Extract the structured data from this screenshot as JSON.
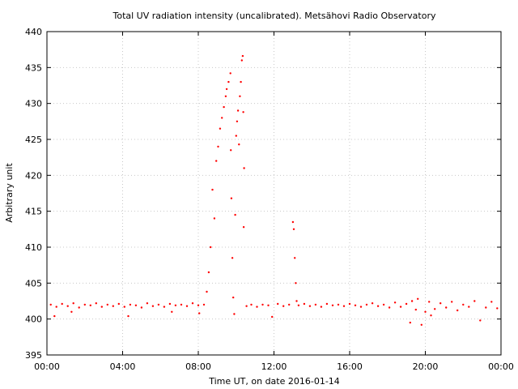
{
  "chart_data": {
    "type": "scatter",
    "title": "Total UV radiation intensity (uncalibrated). Metsähovi Radio Observatory",
    "xlabel": "Time UT, on date 2016-01-14",
    "ylabel": "Arbitrary unit",
    "x_units": "hours UT",
    "xlim": [
      0,
      24
    ],
    "ylim": [
      395,
      440
    ],
    "x_ticks": [
      {
        "value": 0,
        "label": "00:00"
      },
      {
        "value": 4,
        "label": "04:00"
      },
      {
        "value": 8,
        "label": "08:00"
      },
      {
        "value": 12,
        "label": "12:00"
      },
      {
        "value": 16,
        "label": "16:00"
      },
      {
        "value": 20,
        "label": "20:00"
      },
      {
        "value": 24,
        "label": "00:00"
      }
    ],
    "y_ticks": [
      395,
      400,
      405,
      410,
      415,
      420,
      425,
      430,
      435,
      440
    ],
    "grid": true,
    "marker_color": "#ff0000",
    "series": [
      {
        "points": [
          [
            0.2,
            402.0
          ],
          [
            0.5,
            401.7
          ],
          [
            0.8,
            402.1
          ],
          [
            1.1,
            401.8
          ],
          [
            1.4,
            402.2
          ],
          [
            1.7,
            401.6
          ],
          [
            2.0,
            402.0
          ],
          [
            2.3,
            401.9
          ],
          [
            2.6,
            402.2
          ],
          [
            2.9,
            401.7
          ],
          [
            3.2,
            402.0
          ],
          [
            3.5,
            401.8
          ],
          [
            3.8,
            402.1
          ],
          [
            4.1,
            401.7
          ],
          [
            4.4,
            402.0
          ],
          [
            4.7,
            401.9
          ],
          [
            5.0,
            401.6
          ],
          [
            5.3,
            402.2
          ],
          [
            5.6,
            401.8
          ],
          [
            5.9,
            402.0
          ],
          [
            6.2,
            401.7
          ],
          [
            6.5,
            402.1
          ],
          [
            6.8,
            401.9
          ],
          [
            7.1,
            402.0
          ],
          [
            7.4,
            401.8
          ],
          [
            7.7,
            402.2
          ],
          [
            8.0,
            401.9
          ],
          [
            8.3,
            402.0
          ],
          [
            0.4,
            400.4
          ],
          [
            1.3,
            401.0
          ],
          [
            4.3,
            400.4
          ],
          [
            6.6,
            401.0
          ],
          [
            8.05,
            400.8
          ],
          [
            8.45,
            403.8
          ],
          [
            8.55,
            406.5
          ],
          [
            8.65,
            410.0
          ],
          [
            8.75,
            418.0
          ],
          [
            8.85,
            414.0
          ],
          [
            8.95,
            422.0
          ],
          [
            9.05,
            424.0
          ],
          [
            9.15,
            426.5
          ],
          [
            9.25,
            428.0
          ],
          [
            9.35,
            429.5
          ],
          [
            9.45,
            431.0
          ],
          [
            9.5,
            432.0
          ],
          [
            9.6,
            433.0
          ],
          [
            9.7,
            434.2
          ],
          [
            9.72,
            423.5
          ],
          [
            9.75,
            416.8
          ],
          [
            9.8,
            408.5
          ],
          [
            9.85,
            403.0
          ],
          [
            9.9,
            400.7
          ],
          [
            9.95,
            414.5
          ],
          [
            10.0,
            425.5
          ],
          [
            10.05,
            427.5
          ],
          [
            10.1,
            429.0
          ],
          [
            10.15,
            424.3
          ],
          [
            10.2,
            431.0
          ],
          [
            10.25,
            433.0
          ],
          [
            10.3,
            436.0
          ],
          [
            10.35,
            436.6
          ],
          [
            10.38,
            428.8
          ],
          [
            10.4,
            412.8
          ],
          [
            10.42,
            421.0
          ],
          [
            10.55,
            401.8
          ],
          [
            10.8,
            402.0
          ],
          [
            11.1,
            401.7
          ],
          [
            11.4,
            402.0
          ],
          [
            11.7,
            401.9
          ],
          [
            11.9,
            400.3
          ],
          [
            12.2,
            402.1
          ],
          [
            12.5,
            401.8
          ],
          [
            12.8,
            402.0
          ],
          [
            13.0,
            413.5
          ],
          [
            13.05,
            412.5
          ],
          [
            13.1,
            408.5
          ],
          [
            13.15,
            405.0
          ],
          [
            13.2,
            402.5
          ],
          [
            13.3,
            401.9
          ],
          [
            13.6,
            402.1
          ],
          [
            13.9,
            401.8
          ],
          [
            14.2,
            402.0
          ],
          [
            14.5,
            401.7
          ],
          [
            14.8,
            402.1
          ],
          [
            15.1,
            401.9
          ],
          [
            15.4,
            402.0
          ],
          [
            15.7,
            401.8
          ],
          [
            16.0,
            402.1
          ],
          [
            16.3,
            401.9
          ],
          [
            16.6,
            401.7
          ],
          [
            16.9,
            402.0
          ],
          [
            17.2,
            402.2
          ],
          [
            17.5,
            401.8
          ],
          [
            17.8,
            402.0
          ],
          [
            18.1,
            401.6
          ],
          [
            18.4,
            402.3
          ],
          [
            18.7,
            401.7
          ],
          [
            19.0,
            402.1
          ],
          [
            19.3,
            402.5
          ],
          [
            19.5,
            401.3
          ],
          [
            19.6,
            402.8
          ],
          [
            19.8,
            399.2
          ],
          [
            20.0,
            401.0
          ],
          [
            20.2,
            402.4
          ],
          [
            20.5,
            401.4
          ],
          [
            20.8,
            402.2
          ],
          [
            21.1,
            401.6
          ],
          [
            21.4,
            402.4
          ],
          [
            21.7,
            401.2
          ],
          [
            22.0,
            402.0
          ],
          [
            22.3,
            401.7
          ],
          [
            22.6,
            402.5
          ],
          [
            22.9,
            399.8
          ],
          [
            23.2,
            401.6
          ],
          [
            23.5,
            402.4
          ],
          [
            23.8,
            401.5
          ],
          [
            19.2,
            399.5
          ],
          [
            20.3,
            400.5
          ]
        ]
      }
    ]
  }
}
